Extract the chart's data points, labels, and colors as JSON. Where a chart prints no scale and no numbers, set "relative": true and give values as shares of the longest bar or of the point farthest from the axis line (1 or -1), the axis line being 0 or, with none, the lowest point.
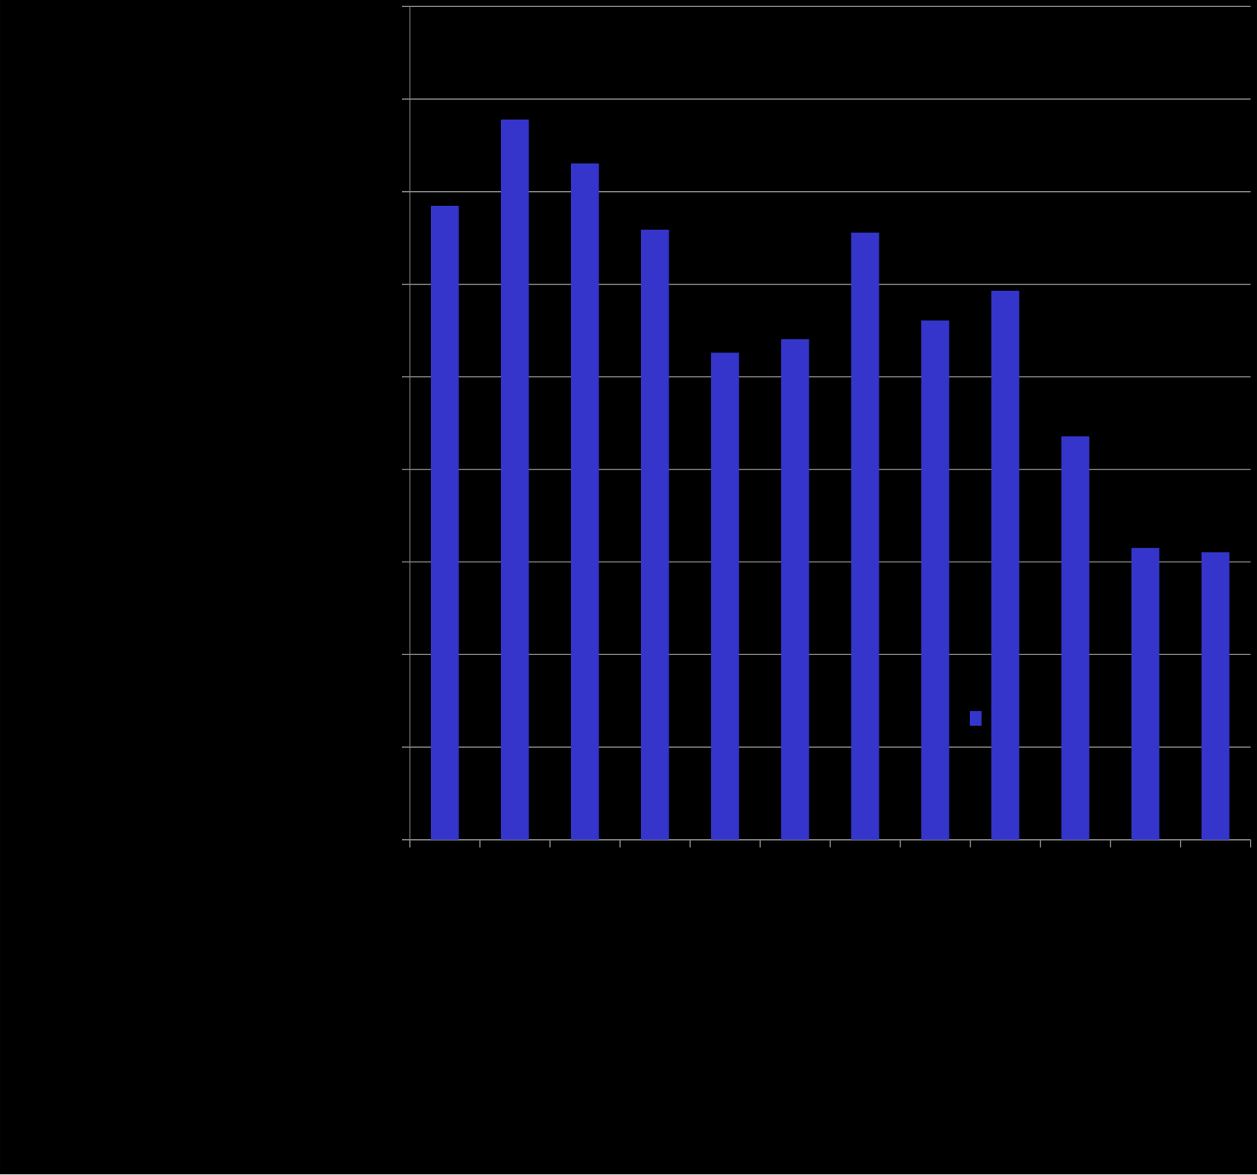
{
  "chart_data": {
    "type": "bar",
    "categories": [
      null,
      null,
      null,
      null,
      null,
      null,
      null,
      null,
      null,
      null,
      null,
      null
    ],
    "values": [
      0.88,
      1,
      0.939,
      0.847,
      0.676,
      0.695,
      0.843,
      0.721,
      0.762,
      0.56,
      0.405,
      0.399
    ],
    "color": "#3535cc",
    "relative": true,
    "grid": "y"
  }
}
